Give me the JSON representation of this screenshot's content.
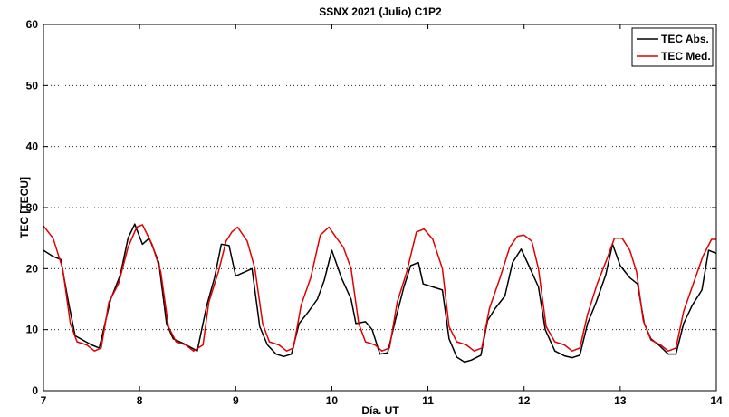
{
  "chart_data": {
    "type": "line",
    "title": "SSNX 2021 (Julio) C1P2",
    "xlabel": "Día. UT",
    "ylabel": "TEC [TECU]",
    "xlim": [
      7,
      14
    ],
    "ylim": [
      0,
      60
    ],
    "xticks": [
      "7",
      "8",
      "9",
      "10",
      "11",
      "12",
      "13",
      "14"
    ],
    "yticks": [
      "0",
      "10",
      "20",
      "30",
      "40",
      "50",
      "60"
    ],
    "grid": "horizontal dotted",
    "legend_position": "top-right",
    "series": [
      {
        "name": "TEC Abs.",
        "color": "#000000",
        "points": [
          [
            7.0,
            23.0
          ],
          [
            7.1,
            22.0
          ],
          [
            7.18,
            21.5
          ],
          [
            7.26,
            14.5
          ],
          [
            7.33,
            9.0
          ],
          [
            7.42,
            8.2
          ],
          [
            7.5,
            7.5
          ],
          [
            7.58,
            7.0
          ],
          [
            7.7,
            15.0
          ],
          [
            7.8,
            19.0
          ],
          [
            7.88,
            25.0
          ],
          [
            7.95,
            27.3
          ],
          [
            8.03,
            24.0
          ],
          [
            8.1,
            25.0
          ],
          [
            8.2,
            21.0
          ],
          [
            8.28,
            11.0
          ],
          [
            8.35,
            8.5
          ],
          [
            8.45,
            7.8
          ],
          [
            8.6,
            6.5
          ],
          [
            8.7,
            14.0
          ],
          [
            8.78,
            18.5
          ],
          [
            8.85,
            24.0
          ],
          [
            8.93,
            23.8
          ],
          [
            9.0,
            18.8
          ],
          [
            9.1,
            19.5
          ],
          [
            9.17,
            20.0
          ],
          [
            9.25,
            10.5
          ],
          [
            9.33,
            7.5
          ],
          [
            9.42,
            6.0
          ],
          [
            9.5,
            5.6
          ],
          [
            9.58,
            6.0
          ],
          [
            9.66,
            11.0
          ],
          [
            9.75,
            12.8
          ],
          [
            9.85,
            15.0
          ],
          [
            9.92,
            18.0
          ],
          [
            10.0,
            23.0
          ],
          [
            10.1,
            18.5
          ],
          [
            10.2,
            15.0
          ],
          [
            10.25,
            11.0
          ],
          [
            10.35,
            11.3
          ],
          [
            10.42,
            10.0
          ],
          [
            10.5,
            6.0
          ],
          [
            10.58,
            6.2
          ],
          [
            10.66,
            11.5
          ],
          [
            10.75,
            17.0
          ],
          [
            10.82,
            20.5
          ],
          [
            10.9,
            21.0
          ],
          [
            10.95,
            17.5
          ],
          [
            11.05,
            17.0
          ],
          [
            11.15,
            16.5
          ],
          [
            11.22,
            8.5
          ],
          [
            11.3,
            5.5
          ],
          [
            11.38,
            4.7
          ],
          [
            11.45,
            5.0
          ],
          [
            11.55,
            5.8
          ],
          [
            11.62,
            11.5
          ],
          [
            11.7,
            13.5
          ],
          [
            11.8,
            15.5
          ],
          [
            11.88,
            21.0
          ],
          [
            11.97,
            23.2
          ],
          [
            12.05,
            20.5
          ],
          [
            12.15,
            17.0
          ],
          [
            12.22,
            10.0
          ],
          [
            12.32,
            6.5
          ],
          [
            12.42,
            5.7
          ],
          [
            12.5,
            5.4
          ],
          [
            12.58,
            5.8
          ],
          [
            12.66,
            11.0
          ],
          [
            12.75,
            14.5
          ],
          [
            12.85,
            19.0
          ],
          [
            12.92,
            24.0
          ],
          [
            13.0,
            20.5
          ],
          [
            13.1,
            18.5
          ],
          [
            13.18,
            17.5
          ],
          [
            13.25,
            11.0
          ],
          [
            13.32,
            8.5
          ],
          [
            13.4,
            7.5
          ],
          [
            13.5,
            6.0
          ],
          [
            13.58,
            6.0
          ],
          [
            13.66,
            11.0
          ],
          [
            13.75,
            14.0
          ],
          [
            13.85,
            16.5
          ],
          [
            13.92,
            23.0
          ],
          [
            14.0,
            22.5
          ]
        ]
      },
      {
        "name": "TEC Med.",
        "color": "#e00000",
        "points": [
          [
            7.0,
            27.0
          ],
          [
            7.1,
            25.0
          ],
          [
            7.2,
            20.0
          ],
          [
            7.28,
            11.0
          ],
          [
            7.35,
            8.0
          ],
          [
            7.45,
            7.5
          ],
          [
            7.53,
            6.5
          ],
          [
            7.6,
            7.0
          ],
          [
            7.68,
            14.5
          ],
          [
            7.78,
            17.5
          ],
          [
            7.88,
            23.5
          ],
          [
            7.97,
            26.8
          ],
          [
            8.03,
            27.2
          ],
          [
            8.13,
            24.0
          ],
          [
            8.22,
            19.5
          ],
          [
            8.3,
            10.5
          ],
          [
            8.38,
            8.0
          ],
          [
            8.48,
            7.5
          ],
          [
            8.56,
            6.5
          ],
          [
            8.66,
            7.5
          ],
          [
            8.72,
            14.5
          ],
          [
            8.82,
            19.5
          ],
          [
            8.9,
            24.5
          ],
          [
            8.96,
            26.0
          ],
          [
            9.02,
            26.8
          ],
          [
            9.12,
            24.5
          ],
          [
            9.2,
            20.0
          ],
          [
            9.28,
            11.0
          ],
          [
            9.35,
            8.0
          ],
          [
            9.45,
            7.5
          ],
          [
            9.53,
            6.5
          ],
          [
            9.6,
            7.0
          ],
          [
            9.68,
            14.0
          ],
          [
            9.78,
            18.5
          ],
          [
            9.88,
            25.5
          ],
          [
            9.97,
            26.8
          ],
          [
            10.05,
            25.0
          ],
          [
            10.12,
            23.5
          ],
          [
            10.2,
            20.0
          ],
          [
            10.28,
            11.0
          ],
          [
            10.35,
            8.0
          ],
          [
            10.45,
            7.5
          ],
          [
            10.52,
            6.5
          ],
          [
            10.6,
            7.0
          ],
          [
            10.68,
            14.5
          ],
          [
            10.78,
            19.5
          ],
          [
            10.88,
            26.0
          ],
          [
            10.96,
            26.5
          ],
          [
            11.05,
            24.8
          ],
          [
            11.15,
            20.0
          ],
          [
            11.22,
            10.5
          ],
          [
            11.3,
            8.0
          ],
          [
            11.4,
            7.5
          ],
          [
            11.48,
            6.5
          ],
          [
            11.56,
            7.0
          ],
          [
            11.64,
            13.5
          ],
          [
            11.75,
            18.5
          ],
          [
            11.85,
            23.5
          ],
          [
            11.93,
            25.3
          ],
          [
            12.0,
            25.5
          ],
          [
            12.08,
            24.5
          ],
          [
            12.15,
            20.0
          ],
          [
            12.23,
            10.5
          ],
          [
            12.32,
            8.0
          ],
          [
            12.42,
            7.5
          ],
          [
            12.5,
            6.5
          ],
          [
            12.58,
            7.0
          ],
          [
            12.66,
            12.5
          ],
          [
            12.76,
            17.5
          ],
          [
            12.86,
            21.5
          ],
          [
            12.94,
            25.0
          ],
          [
            13.02,
            25.0
          ],
          [
            13.1,
            23.0
          ],
          [
            13.17,
            19.5
          ],
          [
            13.24,
            11.5
          ],
          [
            13.32,
            8.3
          ],
          [
            13.42,
            7.5
          ],
          [
            13.5,
            6.5
          ],
          [
            13.58,
            7.0
          ],
          [
            13.66,
            13.0
          ],
          [
            13.76,
            17.5
          ],
          [
            13.86,
            22.0
          ],
          [
            13.95,
            24.8
          ],
          [
            14.0,
            24.8
          ]
        ]
      }
    ]
  }
}
